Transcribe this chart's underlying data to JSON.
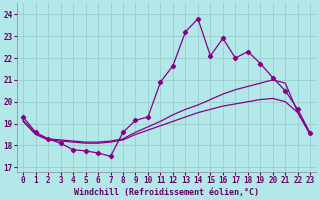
{
  "xlabel": "Windchill (Refroidissement éolien,°C)",
  "x_ticks": [
    0,
    1,
    2,
    3,
    4,
    5,
    6,
    7,
    8,
    9,
    10,
    11,
    12,
    13,
    14,
    15,
    16,
    17,
    18,
    19,
    20,
    21,
    22,
    23
  ],
  "xlim": [
    -0.5,
    23.5
  ],
  "ylim": [
    16.8,
    24.5
  ],
  "yticks": [
    17,
    18,
    19,
    20,
    21,
    22,
    23,
    24
  ],
  "bg_color": "#b3e8e8",
  "grid_color": "#99cccc",
  "line_color": "#880088",
  "line1_x": [
    0,
    1,
    2,
    3,
    4,
    5,
    6,
    7,
    8,
    9,
    10,
    11,
    12,
    13,
    14,
    15,
    16,
    17,
    18,
    19,
    20,
    21,
    22,
    23
  ],
  "line1_y": [
    19.3,
    18.6,
    18.3,
    18.1,
    17.8,
    17.75,
    17.65,
    17.5,
    18.6,
    19.15,
    19.3,
    20.9,
    21.65,
    23.2,
    23.8,
    22.1,
    22.9,
    22.0,
    22.3,
    21.75,
    21.1,
    20.5,
    19.65,
    18.55
  ],
  "line2_x": [
    0,
    1,
    2,
    3,
    4,
    5,
    6,
    7,
    8,
    9,
    10,
    11,
    12,
    13,
    14,
    15,
    16,
    17,
    18,
    19,
    20,
    21,
    22,
    23
  ],
  "line2_y": [
    19.15,
    18.55,
    18.3,
    18.25,
    18.2,
    18.15,
    18.15,
    18.2,
    18.3,
    18.6,
    18.85,
    19.1,
    19.4,
    19.65,
    19.85,
    20.1,
    20.35,
    20.55,
    20.7,
    20.85,
    21.0,
    20.85,
    19.5,
    18.5
  ],
  "line3_x": [
    0,
    1,
    2,
    3,
    4,
    5,
    6,
    7,
    8,
    9,
    10,
    11,
    12,
    13,
    14,
    15,
    16,
    17,
    18,
    19,
    20,
    21,
    22,
    23
  ],
  "line3_y": [
    19.1,
    18.5,
    18.25,
    18.2,
    18.15,
    18.1,
    18.1,
    18.15,
    18.25,
    18.5,
    18.7,
    18.9,
    19.1,
    19.3,
    19.5,
    19.65,
    19.8,
    19.9,
    20.0,
    20.1,
    20.15,
    20.0,
    19.5,
    18.5
  ]
}
